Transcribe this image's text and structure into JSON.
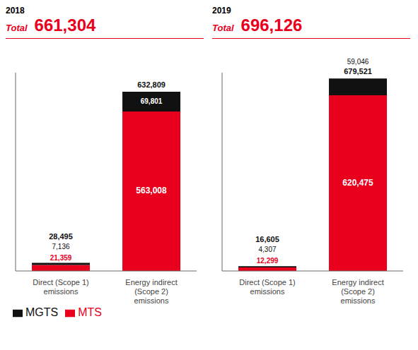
{
  "chart_data": [
    {
      "type": "bar",
      "stacked": true,
      "title": "2018",
      "annotations": [
        "Total",
        "661,304"
      ],
      "categories": [
        "Direct (Scope 1)\nemissions",
        "Energy indirect\n(Scope 2)\nemissions"
      ],
      "series": [
        {
          "name": "MTS",
          "color": "#e8001d",
          "values": [
            21359,
            563008
          ],
          "value_labels": [
            "21,359",
            "563,008"
          ]
        },
        {
          "name": "MGTS",
          "color": "#111111",
          "values": [
            7136,
            69801
          ],
          "value_labels": [
            "7,136",
            "69,801"
          ]
        }
      ],
      "totals": [
        28495,
        632809
      ],
      "total_labels": [
        "28,495",
        "632,809"
      ],
      "ylim": [
        0,
        700000
      ],
      "data_labels": true,
      "tick_labels": "x",
      "grid": false,
      "legend": "bottom"
    },
    {
      "type": "bar",
      "stacked": true,
      "title": "2019",
      "annotations": [
        "Total",
        "696,126"
      ],
      "categories": [
        "Direct (Scope 1)\nemissions",
        "Energy indirect\n(Scope 2)\nemissions"
      ],
      "series": [
        {
          "name": "MTS",
          "color": "#e8001d",
          "values": [
            12299,
            620475
          ],
          "value_labels": [
            "12,299",
            "620,475"
          ]
        },
        {
          "name": "MGTS",
          "color": "#111111",
          "values": [
            4307,
            59046
          ],
          "value_labels": [
            "4,307",
            "59,046"
          ]
        }
      ],
      "totals": [
        16605,
        679521
      ],
      "total_labels": [
        "16,605",
        "679,521"
      ],
      "ylim": [
        0,
        700000
      ],
      "data_labels": true,
      "tick_labels": "x",
      "grid": false
    }
  ]
}
